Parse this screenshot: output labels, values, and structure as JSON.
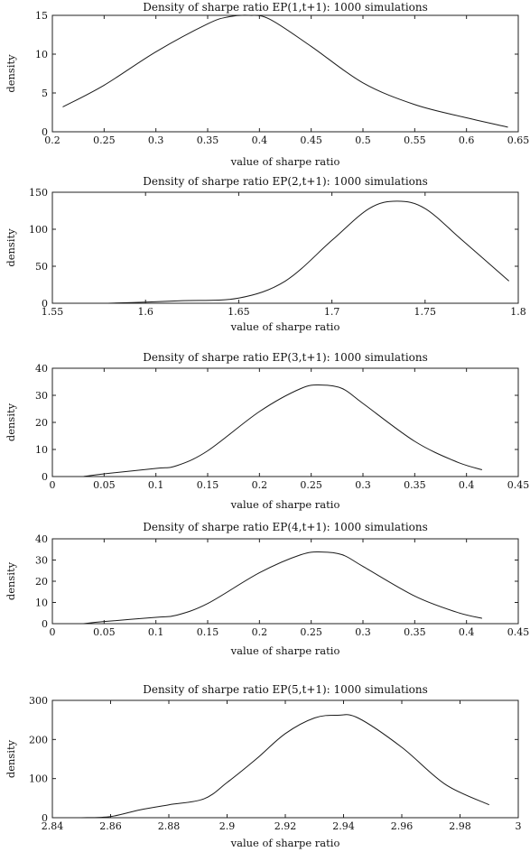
{
  "chart_data": [
    {
      "type": "line",
      "title": "Density of sharpe ratio EP(1,t+1): 1000 simulations",
      "xlabel": "value of sharpe ratio",
      "ylabel": "density",
      "xlim": [
        0.2,
        0.65
      ],
      "ylim": [
        0,
        15
      ],
      "xticks": [
        0.2,
        0.25,
        0.3,
        0.35,
        0.4,
        0.45,
        0.5,
        0.55,
        0.6,
        0.65
      ],
      "xtick_labels": [
        "0.2",
        "0.25",
        "0.3",
        "0.35",
        "0.4",
        "0.45",
        "0.5",
        "0.55",
        "0.6",
        "0.65"
      ],
      "yticks": [
        0,
        5,
        10,
        15
      ],
      "ytick_labels": [
        "0",
        "5",
        "10",
        "15"
      ],
      "grid": false,
      "series": [
        {
          "x": [
            0.21,
            0.25,
            0.3,
            0.35,
            0.37,
            0.39,
            0.41,
            0.45,
            0.5,
            0.55,
            0.6,
            0.64
          ],
          "y": [
            3.2,
            6.0,
            10.3,
            13.9,
            14.8,
            15.0,
            14.5,
            11.0,
            6.3,
            3.5,
            1.8,
            0.6
          ]
        }
      ]
    },
    {
      "type": "line",
      "title": "Density of sharpe ratio EP(2,t+1): 1000 simulations",
      "xlabel": "value of sharpe ratio",
      "ylabel": "density",
      "xlim": [
        1.55,
        1.8
      ],
      "ylim": [
        0,
        150
      ],
      "xticks": [
        1.55,
        1.6,
        1.65,
        1.7,
        1.75,
        1.8
      ],
      "xtick_labels": [
        "1.55",
        "1.6",
        "1.65",
        "1.7",
        "1.75",
        "1.8"
      ],
      "yticks": [
        0,
        50,
        100,
        150
      ],
      "ytick_labels": [
        "0",
        "50",
        "100",
        "150"
      ],
      "grid": false,
      "series": [
        {
          "x": [
            1.58,
            1.6,
            1.62,
            1.65,
            1.675,
            1.7,
            1.72,
            1.735,
            1.75,
            1.77,
            1.795
          ],
          "y": [
            0,
            1.5,
            3.5,
            7,
            30,
            85,
            128,
            138,
            128,
            85,
            30
          ]
        }
      ]
    },
    {
      "type": "line",
      "title": "Density of sharpe ratio EP(3,t+1): 1000 simulations",
      "xlabel": "value of sharpe ratio",
      "ylabel": "density",
      "xlim": [
        0,
        0.45
      ],
      "ylim": [
        0,
        40
      ],
      "xticks": [
        0,
        0.05,
        0.1,
        0.15,
        0.2,
        0.25,
        0.3,
        0.35,
        0.4,
        0.45
      ],
      "xtick_labels": [
        "0",
        "0.05",
        "0.1",
        "0.15",
        "0.2",
        "0.25",
        "0.3",
        "0.35",
        "0.4",
        "0.45"
      ],
      "yticks": [
        0,
        10,
        20,
        30,
        40
      ],
      "ytick_labels": [
        "0",
        "10",
        "20",
        "30",
        "40"
      ],
      "grid": false,
      "series": [
        {
          "x": [
            0.03,
            0.05,
            0.1,
            0.12,
            0.15,
            0.2,
            0.24,
            0.26,
            0.28,
            0.3,
            0.35,
            0.39,
            0.415
          ],
          "y": [
            0,
            1.0,
            3.0,
            4.0,
            9.5,
            24,
            32.5,
            33.8,
            32.5,
            27,
            13,
            5.5,
            2.5
          ]
        }
      ]
    },
    {
      "type": "line",
      "title": "Density of sharpe ratio EP(4,t+1): 1000 simulations",
      "xlabel": "value of sharpe ratio",
      "ylabel": "density",
      "xlim": [
        0,
        0.45
      ],
      "ylim": [
        0,
        40
      ],
      "xticks": [
        0,
        0.05,
        0.1,
        0.15,
        0.2,
        0.25,
        0.3,
        0.35,
        0.4,
        0.45
      ],
      "xtick_labels": [
        "0",
        "0.05",
        "0.1",
        "0.15",
        "0.2",
        "0.25",
        "0.3",
        "0.35",
        "0.4",
        "0.45"
      ],
      "yticks": [
        0,
        10,
        20,
        30,
        40
      ],
      "ytick_labels": [
        "0",
        "10",
        "20",
        "30",
        "40"
      ],
      "grid": false,
      "series": [
        {
          "x": [
            0.03,
            0.05,
            0.1,
            0.12,
            0.15,
            0.2,
            0.24,
            0.26,
            0.28,
            0.3,
            0.35,
            0.39,
            0.415
          ],
          "y": [
            0,
            1.0,
            3.0,
            4.0,
            9.5,
            24,
            32.5,
            33.8,
            32.5,
            27,
            13,
            5.5,
            2.5
          ]
        }
      ]
    },
    {
      "type": "line",
      "title": "Density of sharpe ratio EP(5,t+1): 1000 simulations",
      "xlabel": "value of sharpe ratio",
      "ylabel": "density",
      "xlim": [
        2.84,
        3.0
      ],
      "ylim": [
        0,
        300
      ],
      "xticks": [
        2.84,
        2.86,
        2.88,
        2.9,
        2.92,
        2.94,
        2.96,
        2.98,
        3.0
      ],
      "xtick_labels": [
        "2.84",
        "2.86",
        "2.88",
        "2.9",
        "2.92",
        "2.94",
        "2.96",
        "2.98",
        "3"
      ],
      "yticks": [
        0,
        100,
        200,
        300
      ],
      "ytick_labels": [
        "0",
        "100",
        "200",
        "300"
      ],
      "grid": false,
      "series": [
        {
          "x": [
            2.85,
            2.86,
            2.87,
            2.88,
            2.892,
            2.9,
            2.91,
            2.92,
            2.93,
            2.938,
            2.945,
            2.96,
            2.975,
            2.99
          ],
          "y": [
            0,
            3,
            20,
            33,
            48,
            90,
            150,
            215,
            255,
            262,
            255,
            180,
            85,
            33
          ]
        }
      ]
    }
  ]
}
